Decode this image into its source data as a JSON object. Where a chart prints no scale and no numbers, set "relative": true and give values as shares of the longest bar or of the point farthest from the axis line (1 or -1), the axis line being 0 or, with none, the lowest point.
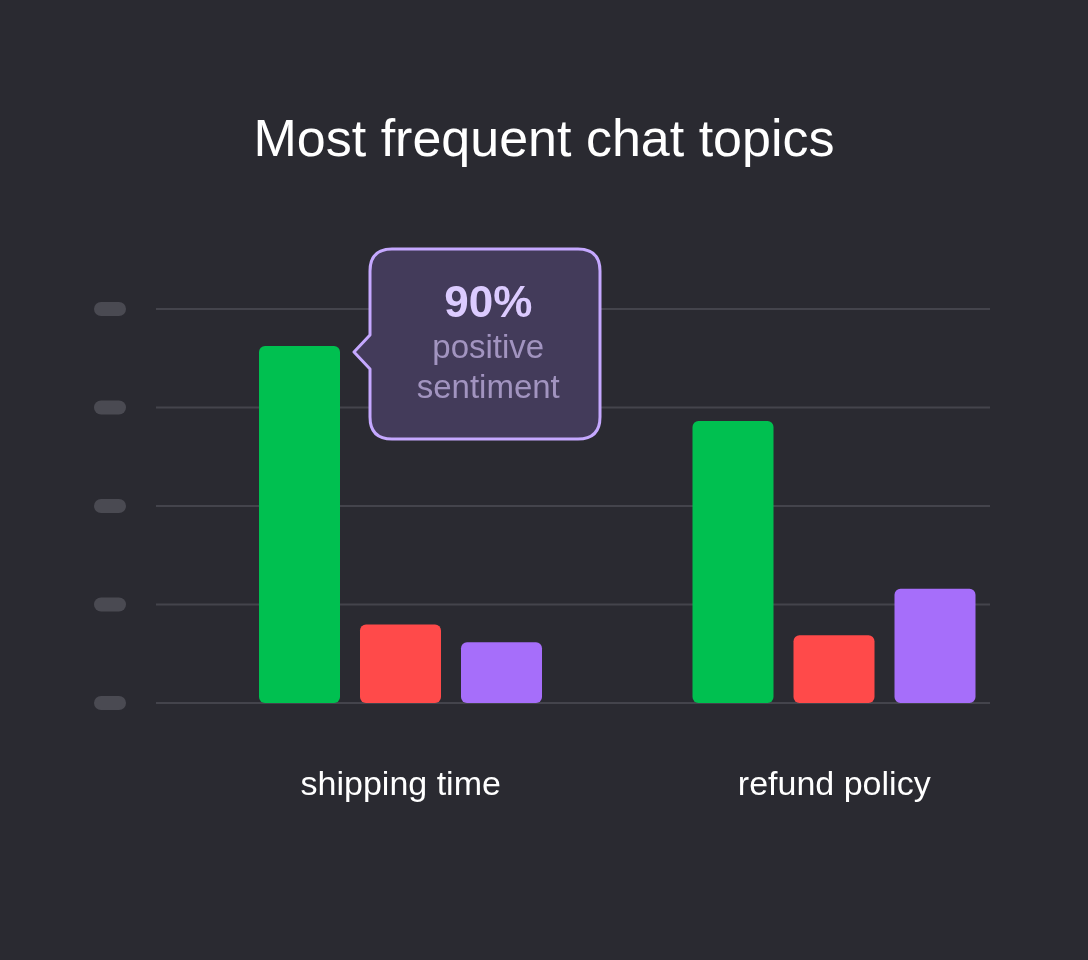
{
  "chart_data": {
    "type": "bar",
    "title": "Most frequent chat topics",
    "categories": [
      "shipping time",
      "refund policy"
    ],
    "relative": true,
    "grid": "y",
    "series": [
      {
        "color": "#00c050",
        "values": [
          1,
          0.79
        ]
      },
      {
        "color": "#ff4a4a",
        "values": [
          0.22,
          0.19
        ]
      },
      {
        "color": "#a66efa",
        "values": [
          0.17,
          0.32
        ]
      }
    ],
    "annotations": [
      "90% positive sentiment"
    ]
  }
}
